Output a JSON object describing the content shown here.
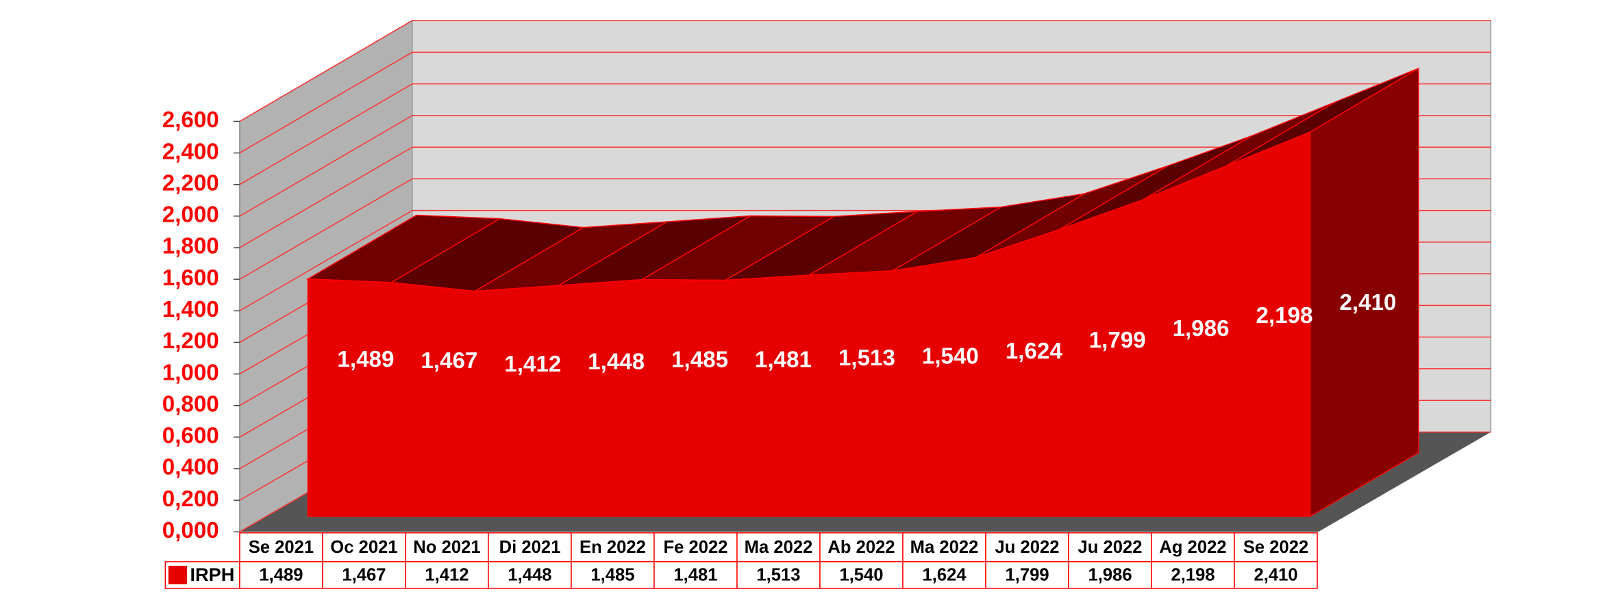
{
  "chart_data": {
    "type": "area3d",
    "categories": [
      "Se 2021",
      "Oc 2021",
      "No 2021",
      "Di 2021",
      "En 2022",
      "Fe 2022",
      "Ma 2022",
      "Ab 2022",
      "Ma 2022",
      "Ju 2022",
      "Ju 2022",
      "Ag 2022",
      "Se 2022"
    ],
    "series": [
      {
        "name": "IRPH",
        "color": "#e60000",
        "values": [
          1.489,
          1.467,
          1.412,
          1.448,
          1.485,
          1.481,
          1.513,
          1.54,
          1.624,
          1.799,
          1.986,
          2.198,
          2.41
        ],
        "value_labels": [
          "1,489",
          "1,467",
          "1,412",
          "1,448",
          "1,485",
          "1,481",
          "1,513",
          "1,540",
          "1,624",
          "1,799",
          "1,986",
          "2,198",
          "2,410"
        ]
      }
    ],
    "ylim": [
      0,
      2.6
    ],
    "yticks": [
      {
        "value": 0,
        "label": "0,000"
      },
      {
        "value": 0.2,
        "label": "0,200"
      },
      {
        "value": 0.4,
        "label": "0,400"
      },
      {
        "value": 0.6,
        "label": "0,600"
      },
      {
        "value": 0.8,
        "label": "0,800"
      },
      {
        "value": 1.0,
        "label": "1,000"
      },
      {
        "value": 1.2,
        "label": "1,200"
      },
      {
        "value": 1.4,
        "label": "1,400"
      },
      {
        "value": 1.6,
        "label": "1,600"
      },
      {
        "value": 1.8,
        "label": "1,800"
      },
      {
        "value": 2.0,
        "label": "2,000"
      },
      {
        "value": 2.2,
        "label": "2,200"
      },
      {
        "value": 2.4,
        "label": "2,400"
      },
      {
        "value": 2.6,
        "label": "2,600"
      }
    ],
    "grid": true,
    "data_table": true
  }
}
